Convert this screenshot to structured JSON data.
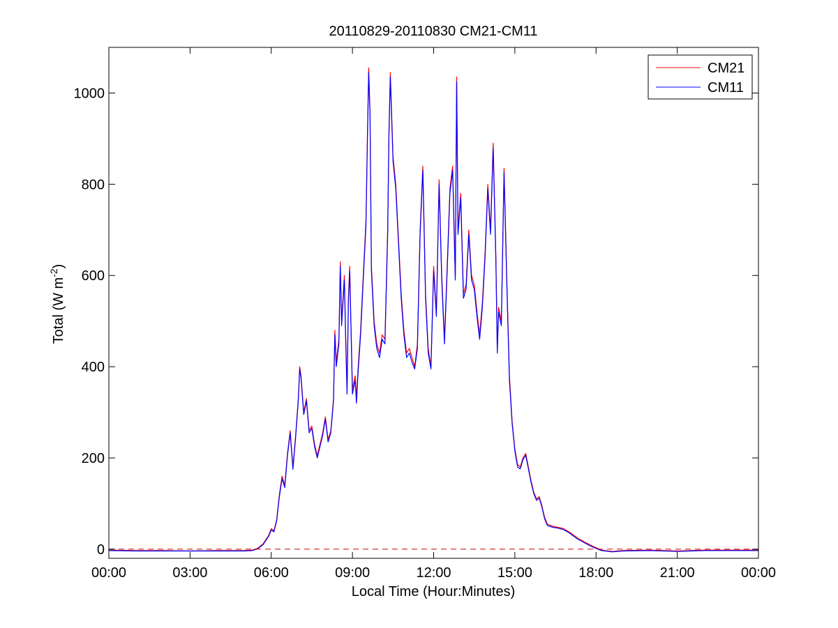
{
  "chart_data": {
    "type": "line",
    "title": "20110829-20110830 CM21-CM11",
    "xlabel": "Local Time (Hour:Minutes)",
    "ylabel": "Total (W m",
    "ylabel_exponent": "-2",
    "ylabel_suffix": ")",
    "x_unit": "hours",
    "xlim": [
      0,
      24
    ],
    "ylim": [
      -20,
      1100
    ],
    "x_ticks": [
      0,
      3,
      6,
      9,
      12,
      15,
      18,
      21,
      24
    ],
    "x_tick_labels": [
      "00:00",
      "03:00",
      "06:00",
      "09:00",
      "12:00",
      "15:00",
      "18:00",
      "21:00",
      "00:00"
    ],
    "y_ticks": [
      0,
      200,
      400,
      600,
      800,
      1000
    ],
    "y_tick_labels": [
      "0",
      "200",
      "400",
      "600",
      "800",
      "1000"
    ],
    "grid": false,
    "legend_position": "top-right",
    "reference_line": {
      "y": 0,
      "color": "#cc0000",
      "style": "dashed"
    },
    "series": [
      {
        "name": "CM21",
        "color": "#ff0000",
        "points": [
          [
            0.0,
            -2
          ],
          [
            1.0,
            -3
          ],
          [
            2.0,
            -3
          ],
          [
            3.0,
            -4
          ],
          [
            4.0,
            -3
          ],
          [
            5.0,
            -3
          ],
          [
            5.3,
            -2
          ],
          [
            5.5,
            2
          ],
          [
            5.7,
            12
          ],
          [
            5.9,
            30
          ],
          [
            6.0,
            45
          ],
          [
            6.1,
            40
          ],
          [
            6.2,
            65
          ],
          [
            6.3,
            120
          ],
          [
            6.4,
            160
          ],
          [
            6.5,
            140
          ],
          [
            6.6,
            210
          ],
          [
            6.7,
            260
          ],
          [
            6.8,
            180
          ],
          [
            6.9,
            250
          ],
          [
            7.0,
            330
          ],
          [
            7.05,
            400
          ],
          [
            7.1,
            380
          ],
          [
            7.2,
            300
          ],
          [
            7.3,
            330
          ],
          [
            7.4,
            260
          ],
          [
            7.5,
            270
          ],
          [
            7.6,
            230
          ],
          [
            7.7,
            205
          ],
          [
            7.8,
            230
          ],
          [
            7.9,
            255
          ],
          [
            8.0,
            290
          ],
          [
            8.1,
            240
          ],
          [
            8.2,
            260
          ],
          [
            8.3,
            330
          ],
          [
            8.35,
            480
          ],
          [
            8.4,
            410
          ],
          [
            8.5,
            460
          ],
          [
            8.55,
            630
          ],
          [
            8.6,
            500
          ],
          [
            8.7,
            600
          ],
          [
            8.75,
            470
          ],
          [
            8.8,
            350
          ],
          [
            8.85,
            550
          ],
          [
            8.9,
            620
          ],
          [
            9.0,
            350
          ],
          [
            9.1,
            380
          ],
          [
            9.15,
            330
          ],
          [
            9.2,
            390
          ],
          [
            9.3,
            480
          ],
          [
            9.4,
            600
          ],
          [
            9.5,
            720
          ],
          [
            9.55,
            900
          ],
          [
            9.6,
            1055
          ],
          [
            9.65,
            960
          ],
          [
            9.7,
            620
          ],
          [
            9.8,
            500
          ],
          [
            9.9,
            450
          ],
          [
            10.0,
            430
          ],
          [
            10.1,
            470
          ],
          [
            10.2,
            460
          ],
          [
            10.3,
            700
          ],
          [
            10.35,
            920
          ],
          [
            10.4,
            1045
          ],
          [
            10.5,
            860
          ],
          [
            10.6,
            800
          ],
          [
            10.7,
            680
          ],
          [
            10.8,
            560
          ],
          [
            10.9,
            480
          ],
          [
            11.0,
            430
          ],
          [
            11.1,
            440
          ],
          [
            11.2,
            420
          ],
          [
            11.3,
            400
          ],
          [
            11.4,
            450
          ],
          [
            11.5,
            700
          ],
          [
            11.6,
            840
          ],
          [
            11.7,
            560
          ],
          [
            11.8,
            440
          ],
          [
            11.9,
            400
          ],
          [
            12.0,
            620
          ],
          [
            12.1,
            520
          ],
          [
            12.2,
            810
          ],
          [
            12.3,
            600
          ],
          [
            12.4,
            460
          ],
          [
            12.5,
            620
          ],
          [
            12.6,
            790
          ],
          [
            12.7,
            840
          ],
          [
            12.8,
            600
          ],
          [
            12.85,
            1035
          ],
          [
            12.9,
            700
          ],
          [
            13.0,
            780
          ],
          [
            13.1,
            560
          ],
          [
            13.2,
            580
          ],
          [
            13.3,
            700
          ],
          [
            13.4,
            600
          ],
          [
            13.5,
            580
          ],
          [
            13.6,
            520
          ],
          [
            13.7,
            470
          ],
          [
            13.8,
            540
          ],
          [
            13.9,
            650
          ],
          [
            14.0,
            800
          ],
          [
            14.1,
            700
          ],
          [
            14.2,
            890
          ],
          [
            14.3,
            640
          ],
          [
            14.35,
            440
          ],
          [
            14.4,
            530
          ],
          [
            14.5,
            500
          ],
          [
            14.6,
            835
          ],
          [
            14.7,
            600
          ],
          [
            14.8,
            380
          ],
          [
            14.9,
            280
          ],
          [
            15.0,
            220
          ],
          [
            15.1,
            185
          ],
          [
            15.2,
            180
          ],
          [
            15.3,
            200
          ],
          [
            15.4,
            210
          ],
          [
            15.5,
            180
          ],
          [
            15.6,
            150
          ],
          [
            15.7,
            125
          ],
          [
            15.8,
            110
          ],
          [
            15.9,
            115
          ],
          [
            16.0,
            95
          ],
          [
            16.1,
            70
          ],
          [
            16.2,
            55
          ],
          [
            16.4,
            50
          ],
          [
            16.6,
            48
          ],
          [
            16.8,
            45
          ],
          [
            17.0,
            38
          ],
          [
            17.3,
            25
          ],
          [
            17.6,
            15
          ],
          [
            17.9,
            6
          ],
          [
            18.2,
            -2
          ],
          [
            18.6,
            -5
          ],
          [
            19.0,
            -3
          ],
          [
            20.0,
            -2
          ],
          [
            21.0,
            -4
          ],
          [
            21.5,
            -3
          ],
          [
            22.0,
            -2
          ],
          [
            23.0,
            -2
          ],
          [
            24.0,
            -2
          ]
        ]
      },
      {
        "name": "CM11",
        "color": "#0000ff",
        "points": [
          [
            0.0,
            -3
          ],
          [
            1.0,
            -4
          ],
          [
            2.0,
            -4
          ],
          [
            3.0,
            -4
          ],
          [
            4.0,
            -4
          ],
          [
            5.0,
            -4
          ],
          [
            5.3,
            -3
          ],
          [
            5.5,
            1
          ],
          [
            5.7,
            10
          ],
          [
            5.9,
            28
          ],
          [
            6.0,
            42
          ],
          [
            6.1,
            38
          ],
          [
            6.2,
            62
          ],
          [
            6.3,
            115
          ],
          [
            6.4,
            155
          ],
          [
            6.5,
            135
          ],
          [
            6.6,
            205
          ],
          [
            6.7,
            255
          ],
          [
            6.8,
            175
          ],
          [
            6.9,
            245
          ],
          [
            7.0,
            325
          ],
          [
            7.05,
            395
          ],
          [
            7.1,
            375
          ],
          [
            7.2,
            295
          ],
          [
            7.3,
            325
          ],
          [
            7.4,
            255
          ],
          [
            7.5,
            265
          ],
          [
            7.6,
            225
          ],
          [
            7.7,
            200
          ],
          [
            7.8,
            225
          ],
          [
            7.9,
            250
          ],
          [
            8.0,
            285
          ],
          [
            8.1,
            235
          ],
          [
            8.2,
            255
          ],
          [
            8.3,
            325
          ],
          [
            8.35,
            470
          ],
          [
            8.4,
            400
          ],
          [
            8.5,
            450
          ],
          [
            8.55,
            620
          ],
          [
            8.6,
            490
          ],
          [
            8.7,
            590
          ],
          [
            8.75,
            460
          ],
          [
            8.8,
            340
          ],
          [
            8.85,
            540
          ],
          [
            8.9,
            610
          ],
          [
            9.0,
            340
          ],
          [
            9.1,
            370
          ],
          [
            9.15,
            320
          ],
          [
            9.2,
            380
          ],
          [
            9.3,
            470
          ],
          [
            9.4,
            590
          ],
          [
            9.5,
            710
          ],
          [
            9.55,
            890
          ],
          [
            9.6,
            1045
          ],
          [
            9.65,
            950
          ],
          [
            9.7,
            610
          ],
          [
            9.8,
            490
          ],
          [
            9.9,
            440
          ],
          [
            10.0,
            420
          ],
          [
            10.1,
            460
          ],
          [
            10.2,
            450
          ],
          [
            10.3,
            690
          ],
          [
            10.35,
            910
          ],
          [
            10.4,
            1035
          ],
          [
            10.5,
            850
          ],
          [
            10.6,
            790
          ],
          [
            10.7,
            670
          ],
          [
            10.8,
            550
          ],
          [
            10.9,
            470
          ],
          [
            11.0,
            420
          ],
          [
            11.1,
            430
          ],
          [
            11.2,
            410
          ],
          [
            11.3,
            395
          ],
          [
            11.4,
            440
          ],
          [
            11.5,
            690
          ],
          [
            11.6,
            830
          ],
          [
            11.7,
            550
          ],
          [
            11.8,
            430
          ],
          [
            11.9,
            395
          ],
          [
            12.0,
            610
          ],
          [
            12.1,
            510
          ],
          [
            12.2,
            800
          ],
          [
            12.3,
            590
          ],
          [
            12.4,
            450
          ],
          [
            12.5,
            610
          ],
          [
            12.6,
            780
          ],
          [
            12.7,
            830
          ],
          [
            12.8,
            590
          ],
          [
            12.85,
            1025
          ],
          [
            12.9,
            690
          ],
          [
            13.0,
            770
          ],
          [
            13.1,
            550
          ],
          [
            13.2,
            570
          ],
          [
            13.3,
            690
          ],
          [
            13.4,
            590
          ],
          [
            13.5,
            570
          ],
          [
            13.6,
            510
          ],
          [
            13.7,
            460
          ],
          [
            13.8,
            530
          ],
          [
            13.9,
            640
          ],
          [
            14.0,
            790
          ],
          [
            14.1,
            690
          ],
          [
            14.2,
            880
          ],
          [
            14.3,
            630
          ],
          [
            14.35,
            430
          ],
          [
            14.4,
            520
          ],
          [
            14.5,
            490
          ],
          [
            14.6,
            825
          ],
          [
            14.7,
            590
          ],
          [
            14.8,
            370
          ],
          [
            14.9,
            275
          ],
          [
            15.0,
            215
          ],
          [
            15.1,
            180
          ],
          [
            15.2,
            176
          ],
          [
            15.3,
            196
          ],
          [
            15.4,
            206
          ],
          [
            15.5,
            176
          ],
          [
            15.6,
            146
          ],
          [
            15.7,
            122
          ],
          [
            15.8,
            107
          ],
          [
            15.9,
            112
          ],
          [
            16.0,
            92
          ],
          [
            16.1,
            67
          ],
          [
            16.2,
            52
          ],
          [
            16.4,
            48
          ],
          [
            16.6,
            46
          ],
          [
            16.8,
            43
          ],
          [
            17.0,
            36
          ],
          [
            17.3,
            23
          ],
          [
            17.6,
            13
          ],
          [
            17.9,
            4
          ],
          [
            18.2,
            -3
          ],
          [
            18.6,
            -6
          ],
          [
            19.0,
            -4
          ],
          [
            20.0,
            -3
          ],
          [
            21.0,
            -5
          ],
          [
            21.5,
            -4
          ],
          [
            22.0,
            -3
          ],
          [
            23.0,
            -3
          ],
          [
            24.0,
            -3
          ]
        ]
      }
    ]
  }
}
